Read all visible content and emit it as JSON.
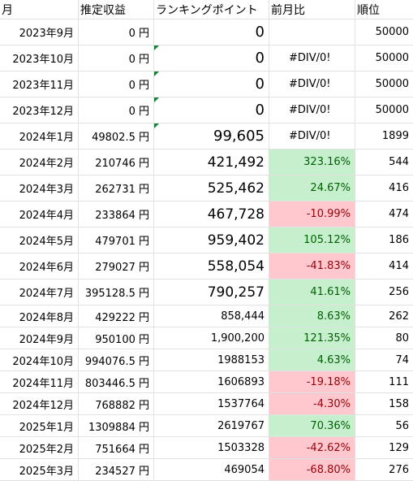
{
  "headers": {
    "month": "月",
    "revenue": "推定収益",
    "points": "ランキングポイント",
    "change": "前月比",
    "rank": "順位"
  },
  "rows": [
    {
      "month": "2023年9月",
      "revenue": "0 円",
      "points": "0",
      "change": "",
      "rank": "50000",
      "status": ""
    },
    {
      "month": "2023年10月",
      "revenue": "0 円",
      "points": "0",
      "change": "#DIV/0!",
      "rank": "50000",
      "status": ""
    },
    {
      "month": "2023年11月",
      "revenue": "0 円",
      "points": "0",
      "change": "#DIV/0!",
      "rank": "50000",
      "status": ""
    },
    {
      "month": "2023年12月",
      "revenue": "0 円",
      "points": "0",
      "change": "#DIV/0!",
      "rank": "50000",
      "status": ""
    },
    {
      "month": "2024年1月",
      "revenue": "49802.5 円",
      "points": "99,605",
      "change": "#DIV/0!",
      "rank": "1899",
      "status": ""
    },
    {
      "month": "2024年2月",
      "revenue": "210746 円",
      "points": "421,492",
      "change": "323.16%",
      "rank": "544",
      "status": "pos"
    },
    {
      "month": "2024年3月",
      "revenue": "262731 円",
      "points": "525,462",
      "change": "24.67%",
      "rank": "416",
      "status": "pos"
    },
    {
      "month": "2024年4月",
      "revenue": "233864 円",
      "points": "467,728",
      "change": "-10.99%",
      "rank": "474",
      "status": "neg"
    },
    {
      "month": "2024年5月",
      "revenue": "479701 円",
      "points": "959,402",
      "change": "105.12%",
      "rank": "186",
      "status": "pos"
    },
    {
      "month": "2024年6月",
      "revenue": "279027 円",
      "points": "558,054",
      "change": "-41.83%",
      "rank": "414",
      "status": "neg"
    },
    {
      "month": "2024年7月",
      "revenue": "395128.5 円",
      "points": "790,257",
      "change": "41.61%",
      "rank": "256",
      "status": "pos"
    },
    {
      "month": "2024年8月",
      "revenue": "429222 円",
      "points": "858,444",
      "change": "8.63%",
      "rank": "262",
      "status": "pos"
    },
    {
      "month": "2024年9月",
      "revenue": "950100 円",
      "points": "1,900,200",
      "change": "121.35%",
      "rank": "80",
      "status": "pos"
    },
    {
      "month": "2024年10月",
      "revenue": "994076.5 円",
      "points": "1988153",
      "change": "4.63%",
      "rank": "74",
      "status": "pos"
    },
    {
      "month": "2024年11月",
      "revenue": "803446.5 円",
      "points": "1606893",
      "change": "-19.18%",
      "rank": "111",
      "status": "neg"
    },
    {
      "month": "2024年12月",
      "revenue": "768882 円",
      "points": "1537764",
      "change": "-4.30%",
      "rank": "158",
      "status": "neg"
    },
    {
      "month": "2025年1月",
      "revenue": "1309884 円",
      "points": "2619767",
      "change": "70.36%",
      "rank": "56",
      "status": "pos"
    },
    {
      "month": "2025年2月",
      "revenue": "751664 円",
      "points": "1503328",
      "change": "-42.62%",
      "rank": "129",
      "status": "neg"
    },
    {
      "month": "2025年3月",
      "revenue": "234527 円",
      "points": "469054",
      "change": "-68.80%",
      "rank": "276",
      "status": "neg"
    }
  ],
  "colors": {
    "positive_bg": "#c6efce",
    "negative_bg": "#ffc7ce",
    "gridline": "#e1e1e1",
    "error_indicator": "#1e7f3a"
  }
}
